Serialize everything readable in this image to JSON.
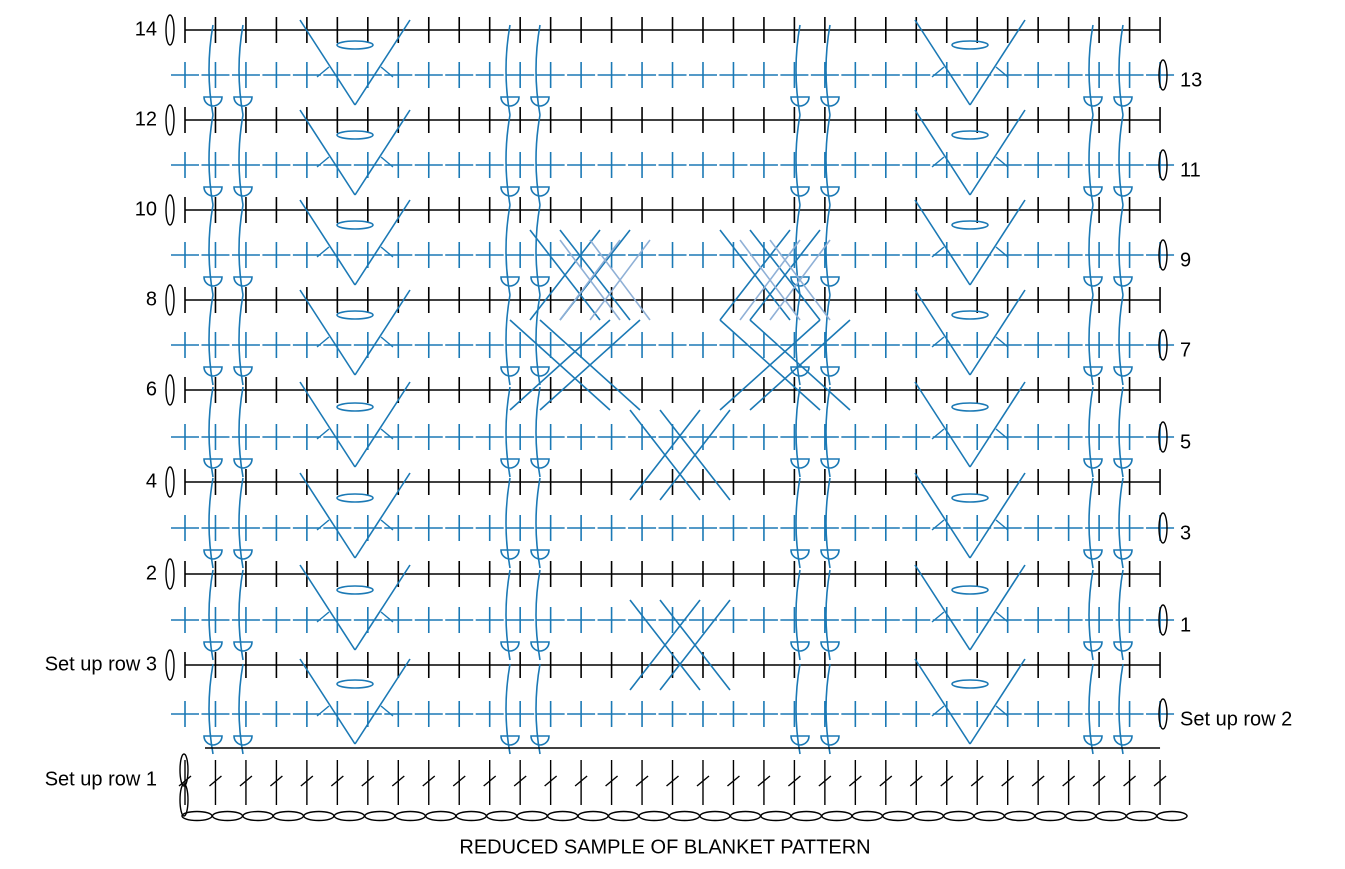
{
  "left_labels": [
    "14",
    "12",
    "10",
    "8",
    "6",
    "4",
    "2",
    "Set up row 3",
    "Set up row 1"
  ],
  "right_labels": [
    "13",
    "11",
    "9",
    "7",
    "5",
    "3",
    "1",
    "Set up row 2"
  ],
  "caption": "REDUCED SAMPLE OF BLANKET PATTERN"
}
